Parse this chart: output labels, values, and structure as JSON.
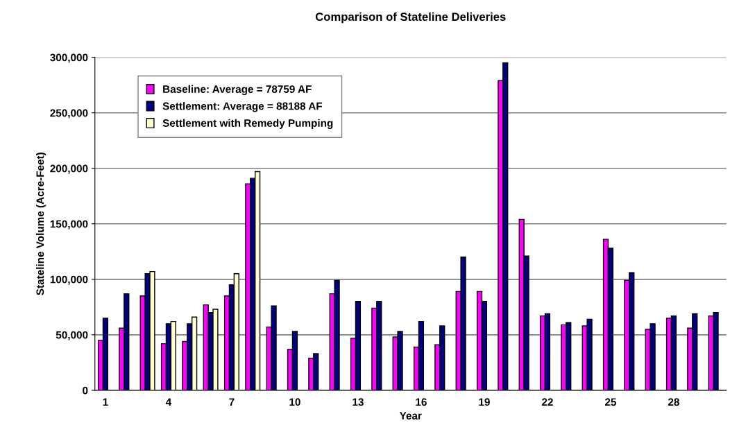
{
  "chart_data": {
    "type": "bar",
    "title": "Comparison of Stateline Deliveries",
    "xlabel": "Year",
    "ylabel": "Stateline Volume (Acre-Feet)",
    "categories": [
      "1",
      null,
      null,
      "4",
      null,
      null,
      "7",
      null,
      null,
      "10",
      null,
      null,
      "13",
      null,
      null,
      "16",
      null,
      null,
      "19",
      null,
      null,
      "22",
      null,
      null,
      "25",
      null,
      null,
      "28",
      null,
      null
    ],
    "series": [
      {
        "name": "Baseline: Average = 78759 AF",
        "color": "#ff00ff",
        "values": [
          45000,
          56000,
          85000,
          42000,
          44000,
          77000,
          85000,
          186000,
          57000,
          37000,
          29000,
          87000,
          47000,
          74000,
          48000,
          39000,
          41000,
          89000,
          89000,
          279000,
          154000,
          67000,
          59000,
          58000,
          136000,
          99000,
          55000,
          65000,
          56000,
          67000
        ]
      },
      {
        "name": "Settlement: Average = 88188 AF",
        "color": "#000080",
        "values": [
          65000,
          87000,
          105000,
          60000,
          60000,
          70000,
          95000,
          191000,
          76000,
          53000,
          33000,
          99000,
          80000,
          80000,
          53000,
          62000,
          58000,
          120000,
          80000,
          295000,
          121000,
          69000,
          61000,
          64000,
          128000,
          106000,
          60000,
          67000,
          69000,
          70000
        ]
      },
      {
        "name": "Settlement with Remedy Pumping",
        "color": "#ffffcc",
        "values": [
          null,
          null,
          107000,
          62000,
          66000,
          73000,
          105000,
          197000,
          null,
          null,
          null,
          null,
          null,
          null,
          null,
          null,
          null,
          null,
          null,
          null,
          null,
          null,
          null,
          null,
          null,
          null,
          null,
          null,
          null,
          null
        ]
      }
    ],
    "ylim": [
      0,
      300000
    ],
    "yticks": [
      {
        "value": 0,
        "label": "0"
      },
      {
        "value": 50000,
        "label": "50,000"
      },
      {
        "value": 100000,
        "label": "100,000"
      },
      {
        "value": 150000,
        "label": "150,000"
      },
      {
        "value": 200000,
        "label": "200,000"
      },
      {
        "value": 250000,
        "label": "250,000"
      },
      {
        "value": 300000,
        "label": "300,000"
      }
    ],
    "grid": "y",
    "legend": "top left"
  }
}
